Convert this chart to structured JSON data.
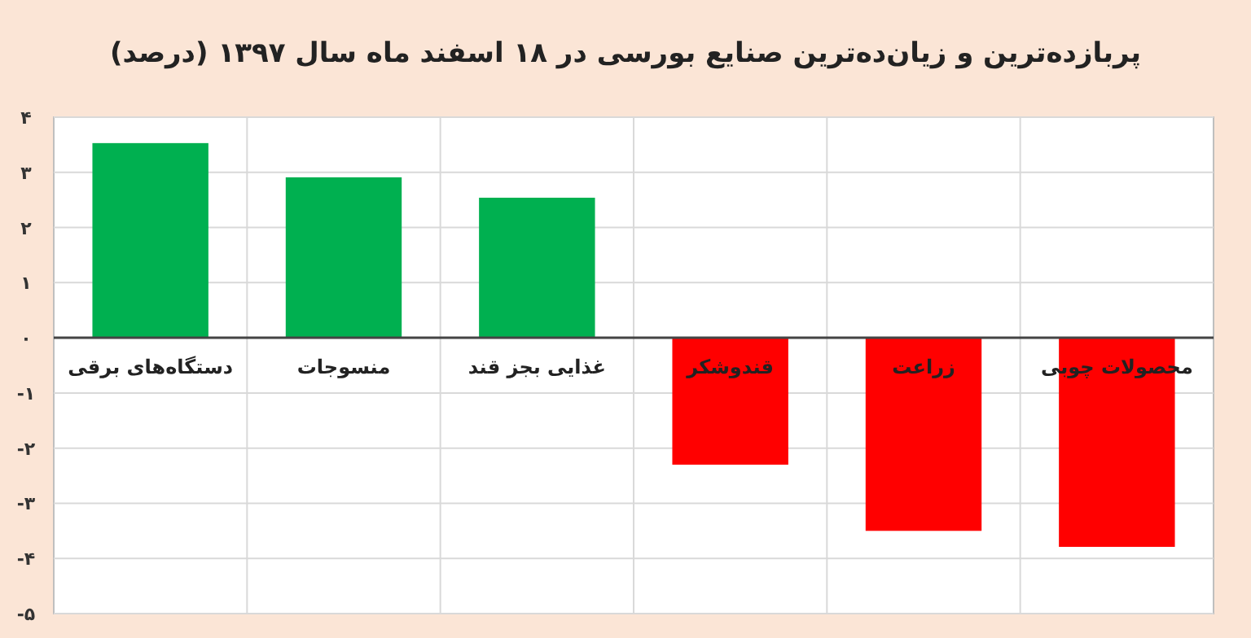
{
  "chart_data": {
    "type": "bar",
    "title": "پربازده‌ترین و زیان‌ده‌ترین صنایع بورسی در ۱۸ اسفند ماه سال ۱۳۹۷ (درصد)",
    "categories": [
      "دستگاه‌های برقی",
      "منسوجات",
      "غذایی بجز قند",
      "قندوشکر",
      "زراعت",
      "محصولات چوبی"
    ],
    "values": [
      3.53,
      2.91,
      2.54,
      -2.3,
      -3.5,
      -3.79
    ],
    "colors": [
      "#00b050",
      "#00b050",
      "#00b050",
      "#ff0000",
      "#ff0000",
      "#ff0000"
    ],
    "ylim": [
      -5,
      4
    ],
    "yticks": [
      {
        "value": 4,
        "label": "۴"
      },
      {
        "value": 3,
        "label": "۳"
      },
      {
        "value": 2,
        "label": "۲"
      },
      {
        "value": 1,
        "label": "۱"
      },
      {
        "value": 0,
        "label": "۰"
      },
      {
        "value": -1,
        "label": "-۱"
      },
      {
        "value": -2,
        "label": "-۲"
      },
      {
        "value": -3,
        "label": "-۳"
      },
      {
        "value": -4,
        "label": "-۴"
      },
      {
        "value": -5,
        "label": "-۵"
      }
    ],
    "grid": true
  }
}
